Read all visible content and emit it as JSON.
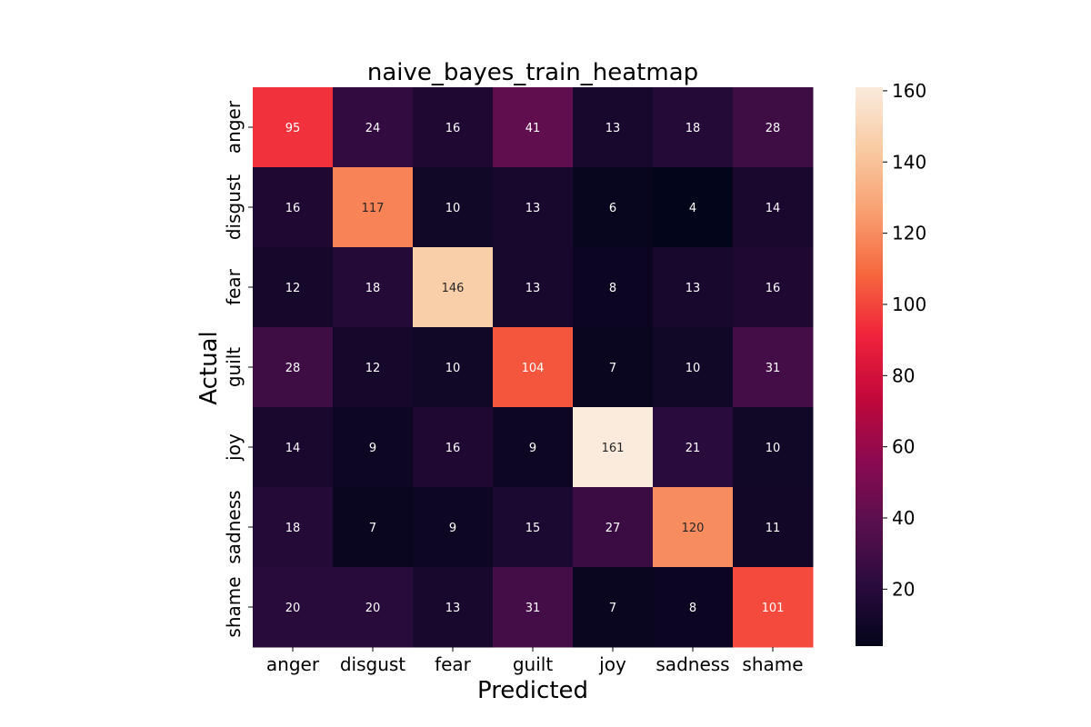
{
  "chart_data": {
    "type": "heatmap",
    "title": "naive_bayes_train_heatmap",
    "xlabel": "Predicted",
    "ylabel": "Actual",
    "x_categories": [
      "anger",
      "disgust",
      "fear",
      "guilt",
      "joy",
      "sadness",
      "shame"
    ],
    "y_categories": [
      "anger",
      "disgust",
      "fear",
      "guilt",
      "joy",
      "sadness",
      "shame"
    ],
    "values": [
      [
        95,
        24,
        16,
        41,
        13,
        18,
        28
      ],
      [
        16,
        117,
        10,
        13,
        6,
        4,
        14
      ],
      [
        12,
        18,
        146,
        13,
        8,
        13,
        16
      ],
      [
        28,
        12,
        10,
        104,
        7,
        10,
        31
      ],
      [
        14,
        9,
        16,
        9,
        161,
        21,
        10
      ],
      [
        18,
        7,
        9,
        15,
        27,
        120,
        11
      ],
      [
        20,
        20,
        13,
        31,
        7,
        8,
        101
      ]
    ],
    "colorbar": {
      "min": 4,
      "max": 161,
      "ticks": [
        20,
        40,
        60,
        80,
        100,
        120,
        140,
        160
      ],
      "tick_labels": [
        "20",
        "40",
        "60",
        "80",
        "100",
        "120",
        "140",
        "160"
      ],
      "colormap_stops": [
        "#03051a",
        "#2b0b3e",
        "#5a0f4e",
        "#8b0a50",
        "#c2083b",
        "#f0233b",
        "#f6683e",
        "#f8a071",
        "#f9cba2",
        "#faebdd"
      ]
    }
  }
}
